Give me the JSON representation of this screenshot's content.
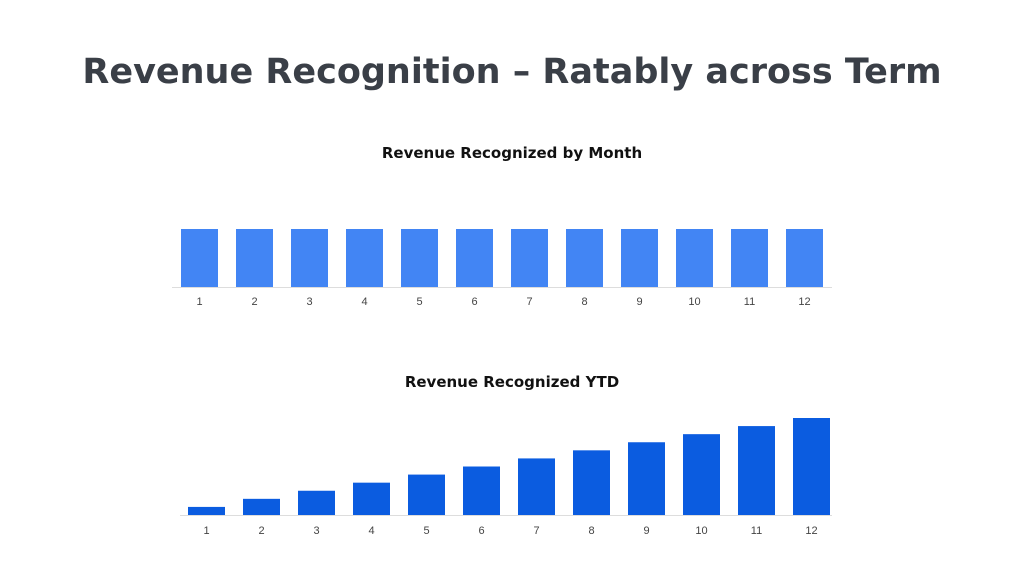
{
  "slide": {
    "title": "Revenue Recognition – Ratably across Term"
  },
  "chart_data": [
    {
      "type": "bar",
      "title": "Revenue Recognized by Month",
      "categories": [
        "1",
        "2",
        "3",
        "4",
        "5",
        "6",
        "7",
        "8",
        "9",
        "10",
        "11",
        "12"
      ],
      "values": [
        1,
        1,
        1,
        1,
        1,
        1,
        1,
        1,
        1,
        1,
        1,
        1
      ],
      "color": "#4285f4",
      "grid": false,
      "y_axis_visible": false
    },
    {
      "type": "bar",
      "title": "Revenue Recognized YTD",
      "categories": [
        "1",
        "2",
        "3",
        "4",
        "5",
        "6",
        "7",
        "8",
        "9",
        "10",
        "11",
        "12"
      ],
      "values": [
        1,
        2,
        3,
        4,
        5,
        6,
        7,
        8,
        9,
        10,
        11,
        12
      ],
      "color": "#0b5ce0",
      "grid": false,
      "y_axis_visible": false
    }
  ]
}
